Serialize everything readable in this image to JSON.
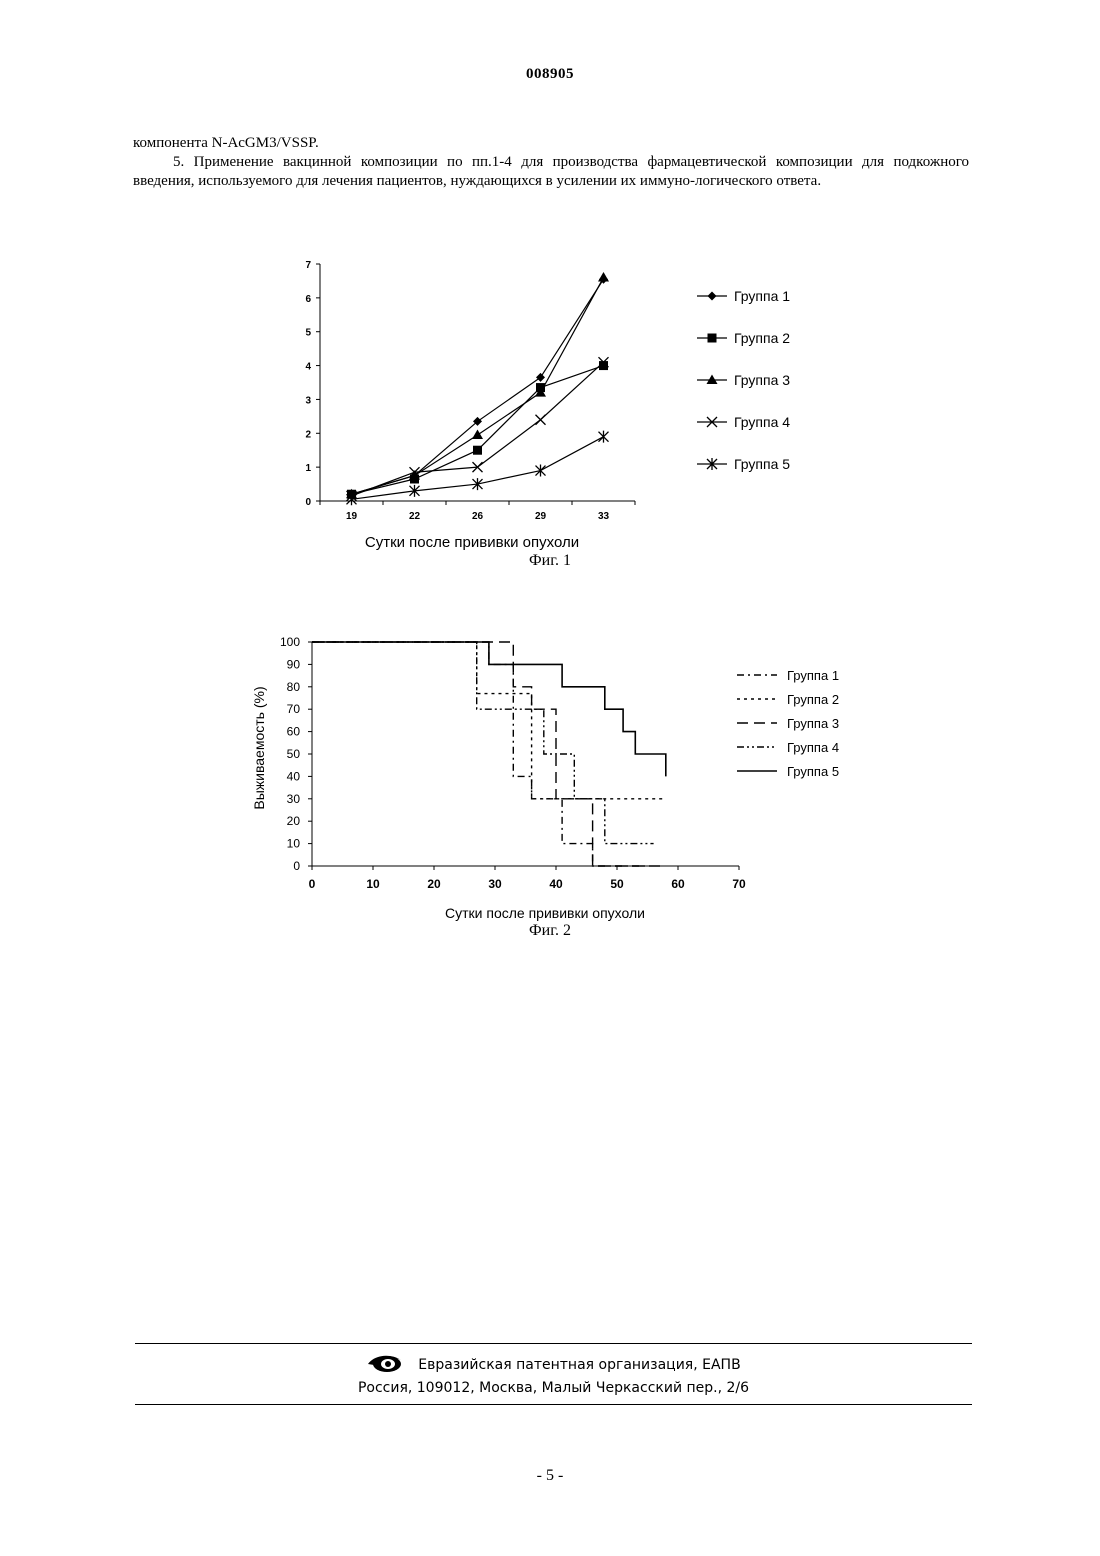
{
  "document": {
    "number": "008905",
    "paragraph_cont": "компонента N-AcGM3/VSSP.",
    "paragraph_5": "5. Применение вакцинной композиции по пп.1-4 для производства фармацевтической композиции для подкожного введения, используемого для лечения пациентов, нуждающихся в усилении их иммуно-логического ответа."
  },
  "figures": [
    {
      "caption": "Фиг. 1"
    },
    {
      "caption": "Фиг. 2"
    }
  ],
  "chart_data": [
    {
      "type": "line",
      "title": "",
      "xlabel": "Сутки после прививки опухоли",
      "ylabel": "",
      "x": [
        19,
        22,
        26,
        29,
        33
      ],
      "x_tick_labels": [
        "19",
        "22",
        "26",
        "29",
        "33"
      ],
      "y_ticks": [
        "0",
        "1",
        "2",
        "3",
        "4",
        "5",
        "6",
        "7"
      ],
      "ylim": [
        0,
        7
      ],
      "grid": false,
      "legend_position": "right",
      "series": [
        {
          "name": "Группа 1",
          "marker": "diamond",
          "values": [
            0.2,
            0.75,
            2.35,
            3.65,
            6.55
          ]
        },
        {
          "name": "Группа 2",
          "marker": "square",
          "values": [
            0.2,
            0.65,
            1.5,
            3.35,
            4.0
          ]
        },
        {
          "name": "Группа 3",
          "marker": "triangle",
          "values": [
            0.2,
            0.75,
            1.95,
            3.2,
            6.6
          ]
        },
        {
          "name": "Группа 4",
          "marker": "x",
          "values": [
            0.15,
            0.85,
            1.0,
            2.4,
            4.1
          ]
        },
        {
          "name": "Группа 5",
          "marker": "star",
          "values": [
            0.05,
            0.3,
            0.5,
            0.9,
            1.9
          ]
        }
      ]
    },
    {
      "type": "line",
      "title": "",
      "xlabel": "Сутки после прививки опухоли",
      "ylabel": "Выживаемость (%)",
      "xlim": [
        0,
        70
      ],
      "x_ticks": [
        "0",
        "10",
        "20",
        "30",
        "40",
        "50",
        "60",
        "70"
      ],
      "ylim": [
        0,
        100
      ],
      "y_ticks": [
        "0",
        "10",
        "20",
        "30",
        "40",
        "50",
        "60",
        "70",
        "80",
        "90",
        "100"
      ],
      "step": true,
      "grid": false,
      "legend_position": "right",
      "series": [
        {
          "name": "Группа 1",
          "dash": "dashdot",
          "points": [
            [
              0,
              100
            ],
            [
              29,
              100
            ],
            [
              29,
              90
            ],
            [
              33,
              90
            ],
            [
              33,
              40
            ],
            [
              36,
              40
            ],
            [
              36,
              30
            ],
            [
              41,
              30
            ],
            [
              41,
              10
            ],
            [
              46,
              10
            ],
            [
              46,
              0
            ],
            [
              55,
              0
            ]
          ]
        },
        {
          "name": "Группа 2",
          "dash": "dotted",
          "points": [
            [
              0,
              100
            ],
            [
              27,
              100
            ],
            [
              27,
              77
            ],
            [
              36,
              77
            ],
            [
              36,
              30
            ],
            [
              58,
              30
            ]
          ]
        },
        {
          "name": "Группа 3",
          "dash": "longdash",
          "points": [
            [
              0,
              100
            ],
            [
              33,
              100
            ],
            [
              33,
              80
            ],
            [
              36,
              80
            ],
            [
              36,
              70
            ],
            [
              40,
              70
            ],
            [
              40,
              30
            ],
            [
              46,
              30
            ],
            [
              46,
              0
            ],
            [
              58,
              0
            ]
          ]
        },
        {
          "name": "Группа 4",
          "dash": "dashdotdot",
          "points": [
            [
              0,
              100
            ],
            [
              27,
              100
            ],
            [
              27,
              70
            ],
            [
              38,
              70
            ],
            [
              38,
              50
            ],
            [
              43,
              50
            ],
            [
              43,
              30
            ],
            [
              48,
              30
            ],
            [
              48,
              10
            ],
            [
              56,
              10
            ]
          ]
        },
        {
          "name": "Группа 5",
          "dash": "solid",
          "points": [
            [
              0,
              100
            ],
            [
              29,
              100
            ],
            [
              29,
              90
            ],
            [
              41,
              90
            ],
            [
              41,
              80
            ],
            [
              48,
              80
            ],
            [
              48,
              70
            ],
            [
              51,
              70
            ],
            [
              51,
              60
            ],
            [
              53,
              60
            ],
            [
              53,
              50
            ],
            [
              58,
              50
            ],
            [
              58,
              40
            ]
          ]
        }
      ]
    }
  ],
  "footer": {
    "org": "Евразийская патентная организация, ЕАПВ",
    "address": "Россия, 109012, Москва, Малый Черкасский пер., 2/6",
    "logo_icon": "eapo-logo-icon"
  },
  "page_number": "- 5 -"
}
